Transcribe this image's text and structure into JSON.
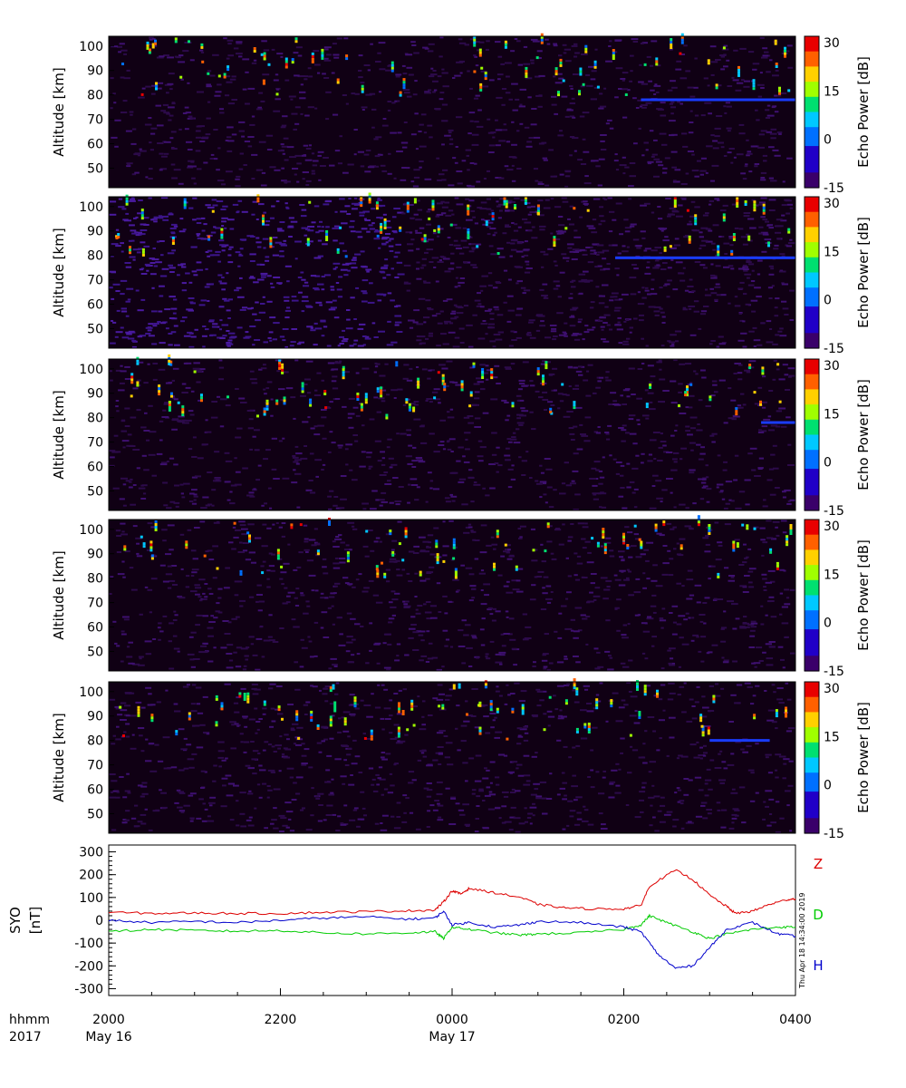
{
  "chart_data": {
    "type": "heatmap",
    "time_axis": {
      "ticks": [
        {
          "label": "2000",
          "date": "May 16",
          "hours": 0
        },
        {
          "label": "2200",
          "date": "",
          "hours": 2
        },
        {
          "label": "0000",
          "date": "May 17",
          "hours": 4
        },
        {
          "label": "0200",
          "date": "",
          "hours": 6
        },
        {
          "label": "0400",
          "date": "",
          "hours": 8
        }
      ],
      "format_label": "hhmm",
      "year_label": "2017"
    },
    "echo_panels": [
      {
        "ylabel": "Altitude [km]",
        "yticks": [
          "100",
          "90",
          "80",
          "70",
          "60",
          "50"
        ],
        "yrange_km": [
          42,
          104
        ],
        "colorbar": {
          "label": "Echo Power [dB]",
          "ticks": [
            "30",
            "15",
            "0",
            "-15"
          ],
          "range_db": [
            -15,
            32
          ]
        },
        "layer": {
          "altitude_km": 78,
          "start_hours": 6.2,
          "end_hours": 8
        }
      },
      {
        "ylabel": "Altitude [km]",
        "yticks": [
          "100",
          "90",
          "80",
          "70",
          "60",
          "50"
        ],
        "yrange_km": [
          42,
          104
        ],
        "colorbar": {
          "label": "Echo Power [dB]",
          "ticks": [
            "30",
            "15",
            "0",
            "-15"
          ],
          "range_db": [
            -15,
            32
          ]
        },
        "layer": {
          "altitude_km": 79,
          "start_hours": 5.9,
          "end_hours": 8
        }
      },
      {
        "ylabel": "Altitude [km]",
        "yticks": [
          "100",
          "90",
          "80",
          "70",
          "60",
          "50"
        ],
        "yrange_km": [
          42,
          104
        ],
        "colorbar": {
          "label": "Echo Power [dB]",
          "ticks": [
            "30",
            "15",
            "0",
            "-15"
          ],
          "range_db": [
            -15,
            32
          ]
        },
        "layer": {
          "altitude_km": 78,
          "start_hours": 7.6,
          "end_hours": 8
        }
      },
      {
        "ylabel": "Altitude [km]",
        "yticks": [
          "100",
          "90",
          "80",
          "70",
          "60",
          "50"
        ],
        "yrange_km": [
          42,
          104
        ],
        "colorbar": {
          "label": "Echo Power [dB]",
          "ticks": [
            "30",
            "15",
            "0",
            "-15"
          ],
          "range_db": [
            -15,
            32
          ]
        },
        "layer": null
      },
      {
        "ylabel": "Altitude [km]",
        "yticks": [
          "100",
          "90",
          "80",
          "70",
          "60",
          "50"
        ],
        "yrange_km": [
          42,
          104
        ],
        "colorbar": {
          "label": "Echo Power [dB]",
          "ticks": [
            "30",
            "15",
            "0",
            "-15"
          ],
          "range_db": [
            -15,
            32
          ]
        },
        "layer": {
          "altitude_km": 80,
          "start_hours": 7.0,
          "end_hours": 7.7
        }
      }
    ],
    "magnetometer": {
      "station": "SYO",
      "unit": "[nT]",
      "yticks": [
        "300",
        "200",
        "100",
        "0",
        "-100",
        "-200",
        "-300"
      ],
      "ylim": [
        -330,
        330
      ],
      "series": [
        {
          "name": "Z",
          "color": "#dd0000",
          "points": [
            [
              0,
              35
            ],
            [
              0.5,
              30
            ],
            [
              1,
              32
            ],
            [
              1.5,
              30
            ],
            [
              2,
              30
            ],
            [
              2.5,
              35
            ],
            [
              3,
              38
            ],
            [
              3.5,
              42
            ],
            [
              3.8,
              45
            ],
            [
              3.9,
              80
            ],
            [
              4.0,
              130
            ],
            [
              4.1,
              115
            ],
            [
              4.2,
              140
            ],
            [
              4.5,
              120
            ],
            [
              4.8,
              100
            ],
            [
              5.0,
              70
            ],
            [
              5.3,
              55
            ],
            [
              5.6,
              50
            ],
            [
              6.0,
              50
            ],
            [
              6.2,
              65
            ],
            [
              6.3,
              150
            ],
            [
              6.6,
              220
            ],
            [
              6.8,
              180
            ],
            [
              7.0,
              110
            ],
            [
              7.2,
              60
            ],
            [
              7.3,
              30
            ],
            [
              7.5,
              40
            ],
            [
              7.7,
              70
            ],
            [
              7.9,
              90
            ],
            [
              8,
              95
            ]
          ]
        },
        {
          "name": "D",
          "color": "#00cc00",
          "points": [
            [
              0,
              -50
            ],
            [
              0.5,
              -40
            ],
            [
              1,
              -45
            ],
            [
              1.5,
              -48
            ],
            [
              2,
              -45
            ],
            [
              2.5,
              -55
            ],
            [
              3,
              -60
            ],
            [
              3.5,
              -55
            ],
            [
              3.8,
              -50
            ],
            [
              3.9,
              -80
            ],
            [
              4.0,
              -30
            ],
            [
              4.2,
              -40
            ],
            [
              4.5,
              -55
            ],
            [
              4.8,
              -65
            ],
            [
              5.0,
              -60
            ],
            [
              5.5,
              -55
            ],
            [
              6.0,
              -40
            ],
            [
              6.2,
              -20
            ],
            [
              6.3,
              20
            ],
            [
              6.5,
              -10
            ],
            [
              6.8,
              -50
            ],
            [
              7.0,
              -80
            ],
            [
              7.2,
              -60
            ],
            [
              7.5,
              -40
            ],
            [
              7.8,
              -30
            ],
            [
              8,
              -30
            ]
          ]
        },
        {
          "name": "H",
          "color": "#0000cc",
          "points": [
            [
              0,
              0
            ],
            [
              0.5,
              -10
            ],
            [
              1,
              -5
            ],
            [
              1.5,
              -10
            ],
            [
              2,
              0
            ],
            [
              2.5,
              10
            ],
            [
              3,
              15
            ],
            [
              3.5,
              5
            ],
            [
              3.8,
              10
            ],
            [
              3.9,
              40
            ],
            [
              4.0,
              -20
            ],
            [
              4.2,
              -10
            ],
            [
              4.5,
              -30
            ],
            [
              4.8,
              -20
            ],
            [
              5.0,
              -5
            ],
            [
              5.5,
              -10
            ],
            [
              6.0,
              -30
            ],
            [
              6.2,
              -50
            ],
            [
              6.4,
              -150
            ],
            [
              6.6,
              -210
            ],
            [
              6.8,
              -200
            ],
            [
              7.0,
              -120
            ],
            [
              7.2,
              -40
            ],
            [
              7.5,
              -10
            ],
            [
              7.8,
              -60
            ],
            [
              8,
              -70
            ]
          ]
        }
      ]
    }
  },
  "timestamp": "Thu Apr 18 14:34:00 2019"
}
